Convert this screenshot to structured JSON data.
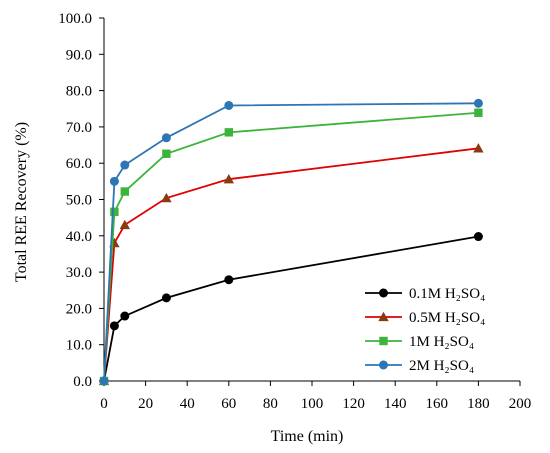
{
  "chart_data": {
    "type": "line",
    "xlabel": "Time (min)",
    "ylabel": "Total REE Recovery (%)",
    "xlim": [
      0,
      200
    ],
    "ylim": [
      0,
      100
    ],
    "x_ticks": [
      "0",
      "20",
      "40",
      "60",
      "80",
      "100",
      "120",
      "140",
      "160",
      "180",
      "200"
    ],
    "y_ticks": [
      "0.0",
      "10.0",
      "20.0",
      "30.0",
      "40.0",
      "50.0",
      "60.0",
      "70.0",
      "80.0",
      "90.0",
      "100.0"
    ],
    "grid": false,
    "legend": "bottom-right",
    "series": [
      {
        "name": "0.1M H₂SO₄",
        "color": "#000000",
        "marker": "circle",
        "x": [
          0,
          5,
          10,
          30,
          60,
          180
        ],
        "y": [
          0,
          15.2,
          17.9,
          22.9,
          27.9,
          39.8
        ]
      },
      {
        "name": "0.5M H₂SO₄",
        "color": "#e00000",
        "marker_color": "#8b3a0f",
        "marker": "triangle",
        "x": [
          0,
          5,
          10,
          30,
          60,
          180
        ],
        "y": [
          0,
          38.0,
          43.0,
          50.4,
          55.6,
          64.1
        ]
      },
      {
        "name": "1M H₂SO₄",
        "color": "#3cb43c",
        "marker": "square",
        "x": [
          0,
          5,
          10,
          30,
          60,
          180
        ],
        "y": [
          0,
          46.6,
          52.2,
          62.6,
          68.5,
          73.9
        ]
      },
      {
        "name": "2M H₂SO₄",
        "color": "#2e75b6",
        "marker": "circle",
        "x": [
          0,
          5,
          10,
          30,
          60,
          180
        ],
        "y": [
          0,
          55.0,
          59.5,
          67.0,
          75.9,
          76.5
        ]
      }
    ]
  }
}
